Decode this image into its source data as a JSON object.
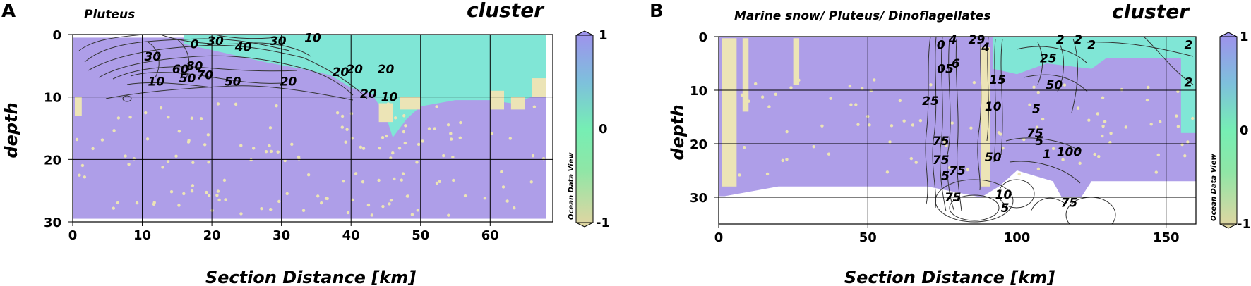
{
  "chart_data": [
    {
      "panel": "A",
      "type": "heatmap",
      "title": "Pluteus",
      "variable_title": "cluster",
      "xlabel": "Section Distance [km]",
      "ylabel": "depth",
      "xlim": [
        0,
        69
      ],
      "ylim": [
        30,
        0
      ],
      "xticks": [
        0,
        10,
        20,
        30,
        40,
        50,
        60
      ],
      "yticks": [
        0,
        10,
        20,
        30
      ],
      "colorbar": {
        "ticks": [
          "1",
          "0",
          "-1"
        ],
        "range": [
          -1,
          1
        ],
        "watermark": "Ocean Data View",
        "colors": [
          "#ddd6a2",
          "#76eeb4",
          "#7ec0dc",
          "#9d94ec"
        ]
      },
      "cluster_colors": {
        "purple": "#ae9ee8",
        "cyan": "#80e6d6",
        "tan": "#ece4b6"
      },
      "data_extent": {
        "x": [
          0,
          68
        ],
        "depth": [
          0.5,
          29.5
        ]
      },
      "cyan_boundary": [
        [
          16,
          0
        ],
        [
          16,
          1.5
        ],
        [
          24,
          3.5
        ],
        [
          28,
          4.5
        ],
        [
          33,
          5.5
        ],
        [
          37,
          6.5
        ],
        [
          40,
          8.5
        ],
        [
          43,
          9.5
        ],
        [
          45,
          13
        ],
        [
          46,
          16.5
        ],
        [
          48,
          13.5
        ],
        [
          50,
          11.5
        ],
        [
          55,
          10.5
        ],
        [
          60,
          10.5
        ],
        [
          63,
          11
        ],
        [
          66,
          10
        ],
        [
          68,
          9
        ],
        [
          68,
          0
        ]
      ],
      "contour_labels": [
        {
          "text": "30",
          "x": 11.5,
          "depth": 3.5
        },
        {
          "text": "0",
          "x": 17.5,
          "depth": 1.5
        },
        {
          "text": "30",
          "x": 20.5,
          "depth": 1.0
        },
        {
          "text": "40",
          "x": 24.5,
          "depth": 2.0
        },
        {
          "text": "30",
          "x": 29.5,
          "depth": 1.0
        },
        {
          "text": "10",
          "x": 34.5,
          "depth": 0.5
        },
        {
          "text": "60",
          "x": 15.5,
          "depth": 5.5
        },
        {
          "text": "80",
          "x": 17.5,
          "depth": 5.0
        },
        {
          "text": "10",
          "x": 12.0,
          "depth": 7.5
        },
        {
          "text": "50",
          "x": 16.5,
          "depth": 7.0
        },
        {
          "text": "70",
          "x": 19.0,
          "depth": 6.5
        },
        {
          "text": "50",
          "x": 23.0,
          "depth": 7.5
        },
        {
          "text": "20",
          "x": 31.0,
          "depth": 7.5
        },
        {
          "text": "20",
          "x": 38.5,
          "depth": 6.0
        },
        {
          "text": "20",
          "x": 40.5,
          "depth": 5.5
        },
        {
          "text": "20",
          "x": 45.0,
          "depth": 5.5
        },
        {
          "text": "20",
          "x": 42.5,
          "depth": 9.5
        },
        {
          "text": "10",
          "x": 45.5,
          "depth": 10.0
        }
      ]
    },
    {
      "panel": "B",
      "type": "heatmap",
      "title": "Marine snow/ Pluteus/ Dinoflagellates",
      "variable_title": "cluster",
      "xlabel": "Section Distance [km]",
      "ylabel": "depth",
      "xlim": [
        0,
        160
      ],
      "ylim": [
        35,
        0
      ],
      "xticks": [
        0,
        50,
        100,
        150
      ],
      "yticks": [
        0,
        10,
        20,
        30
      ],
      "colorbar": {
        "ticks": [
          "1",
          "0",
          "-1"
        ],
        "range": [
          -1,
          1
        ],
        "watermark": "Ocean Data View",
        "colors": [
          "#ddd6a2",
          "#76eeb4",
          "#7ec0dc",
          "#9d94ec"
        ]
      },
      "cluster_colors": {
        "purple": "#ae9ee8",
        "cyan": "#80e6d6",
        "tan": "#ece4b6"
      },
      "data_extent": {
        "x": [
          0,
          160
        ],
        "depth": [
          0,
          30
        ]
      },
      "contour_labels": [
        {
          "text": "0",
          "x": 74.5,
          "depth": 1.5
        },
        {
          "text": "4",
          "x": 78.5,
          "depth": 0.5
        },
        {
          "text": "29",
          "x": 86.5,
          "depth": 0.5
        },
        {
          "text": "4",
          "x": 89.5,
          "depth": 2.0
        },
        {
          "text": "2",
          "x": 114.5,
          "depth": 0.5
        },
        {
          "text": "2",
          "x": 120.5,
          "depth": 0.5
        },
        {
          "text": "2",
          "x": 125.0,
          "depth": 1.5
        },
        {
          "text": "2",
          "x": 157.5,
          "depth": 1.5
        },
        {
          "text": "25",
          "x": 110.5,
          "depth": 4.0
        },
        {
          "text": "05",
          "x": 76.0,
          "depth": 6.0
        },
        {
          "text": "6",
          "x": 79.5,
          "depth": 5.0
        },
        {
          "text": "2",
          "x": 157.5,
          "depth": 8.5
        },
        {
          "text": "15",
          "x": 93.5,
          "depth": 8.0
        },
        {
          "text": "50",
          "x": 112.5,
          "depth": 9.0
        },
        {
          "text": "25",
          "x": 71.0,
          "depth": 12.0
        },
        {
          "text": "10",
          "x": 92.0,
          "depth": 13.0
        },
        {
          "text": "5",
          "x": 106.5,
          "depth": 13.5
        },
        {
          "text": "75",
          "x": 106.0,
          "depth": 18.0
        },
        {
          "text": "75",
          "x": 74.5,
          "depth": 19.5
        },
        {
          "text": "5",
          "x": 107.5,
          "depth": 19.5
        },
        {
          "text": "75",
          "x": 74.5,
          "depth": 23.0
        },
        {
          "text": "1",
          "x": 110.0,
          "depth": 22.0
        },
        {
          "text": "100",
          "x": 117.5,
          "depth": 21.5
        },
        {
          "text": "50",
          "x": 92.0,
          "depth": 22.5
        },
        {
          "text": "75",
          "x": 80.0,
          "depth": 25.0
        },
        {
          "text": "5",
          "x": 76.0,
          "depth": 26.0
        },
        {
          "text": "75",
          "x": 78.5,
          "depth": 30.0
        },
        {
          "text": "10",
          "x": 95.5,
          "depth": 29.5
        },
        {
          "text": "5",
          "x": 96.0,
          "depth": 32.0
        },
        {
          "text": "75",
          "x": 117.5,
          "depth": 31.0
        }
      ]
    }
  ],
  "panelA": {
    "letter": "A",
    "title": "Pluteus",
    "variable": "cluster",
    "xlabel": "Section Distance [km]",
    "ylabel": "depth",
    "watermark": "Ocean Data View"
  },
  "panelB": {
    "letter": "B",
    "title": "Marine snow/ Pluteus/ Dinoflagellates",
    "variable": "cluster",
    "xlabel": "Section Distance [km]",
    "ylabel": "depth",
    "watermark": "Ocean Data View"
  }
}
